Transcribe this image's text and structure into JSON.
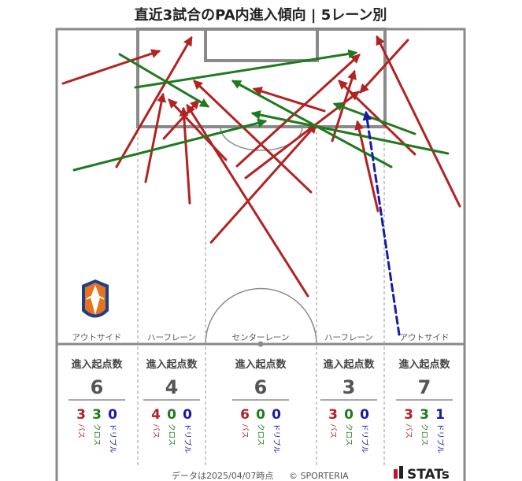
{
  "title": "直近3試合のPA内進入傾向 | 5レーン別",
  "colors": {
    "pass": "#b22222",
    "cross": "#1e7a1e",
    "dribble": "#1a1aa8",
    "pitch_line": "#8a8a8a"
  },
  "chart_data": {
    "type": "arrow-map",
    "title": "直近3試合のPA内進入傾向 | 5レーン別",
    "legend": [
      "パス",
      "クロス",
      "ドリブル"
    ],
    "lanes": [
      {
        "name": "アウトサイド",
        "stat_header": "進入起点数",
        "total": 6,
        "pass": 3,
        "cross": 3,
        "dribble": 0
      },
      {
        "name": "ハーフレーン",
        "stat_header": "進入起点数",
        "total": 4,
        "pass": 4,
        "cross": 0,
        "dribble": 0
      },
      {
        "name": "センターレーン",
        "stat_header": "進入起点数",
        "total": 6,
        "pass": 6,
        "cross": 0,
        "dribble": 0
      },
      {
        "name": "ハーフレーン",
        "stat_header": "進入起点数",
        "total": 3,
        "pass": 3,
        "cross": 0,
        "dribble": 0
      },
      {
        "name": "アウトサイド",
        "stat_header": "進入起点数",
        "total": 7,
        "pass": 3,
        "cross": 3,
        "dribble": 1
      }
    ],
    "stat_labels": {
      "pass": "パス",
      "cross": "クロス",
      "dribble": "ドリブル"
    }
  },
  "footer": {
    "timestamp": "データは2025/04/07時点",
    "copyright": "© SPORTERIA",
    "brand": "STATs"
  }
}
